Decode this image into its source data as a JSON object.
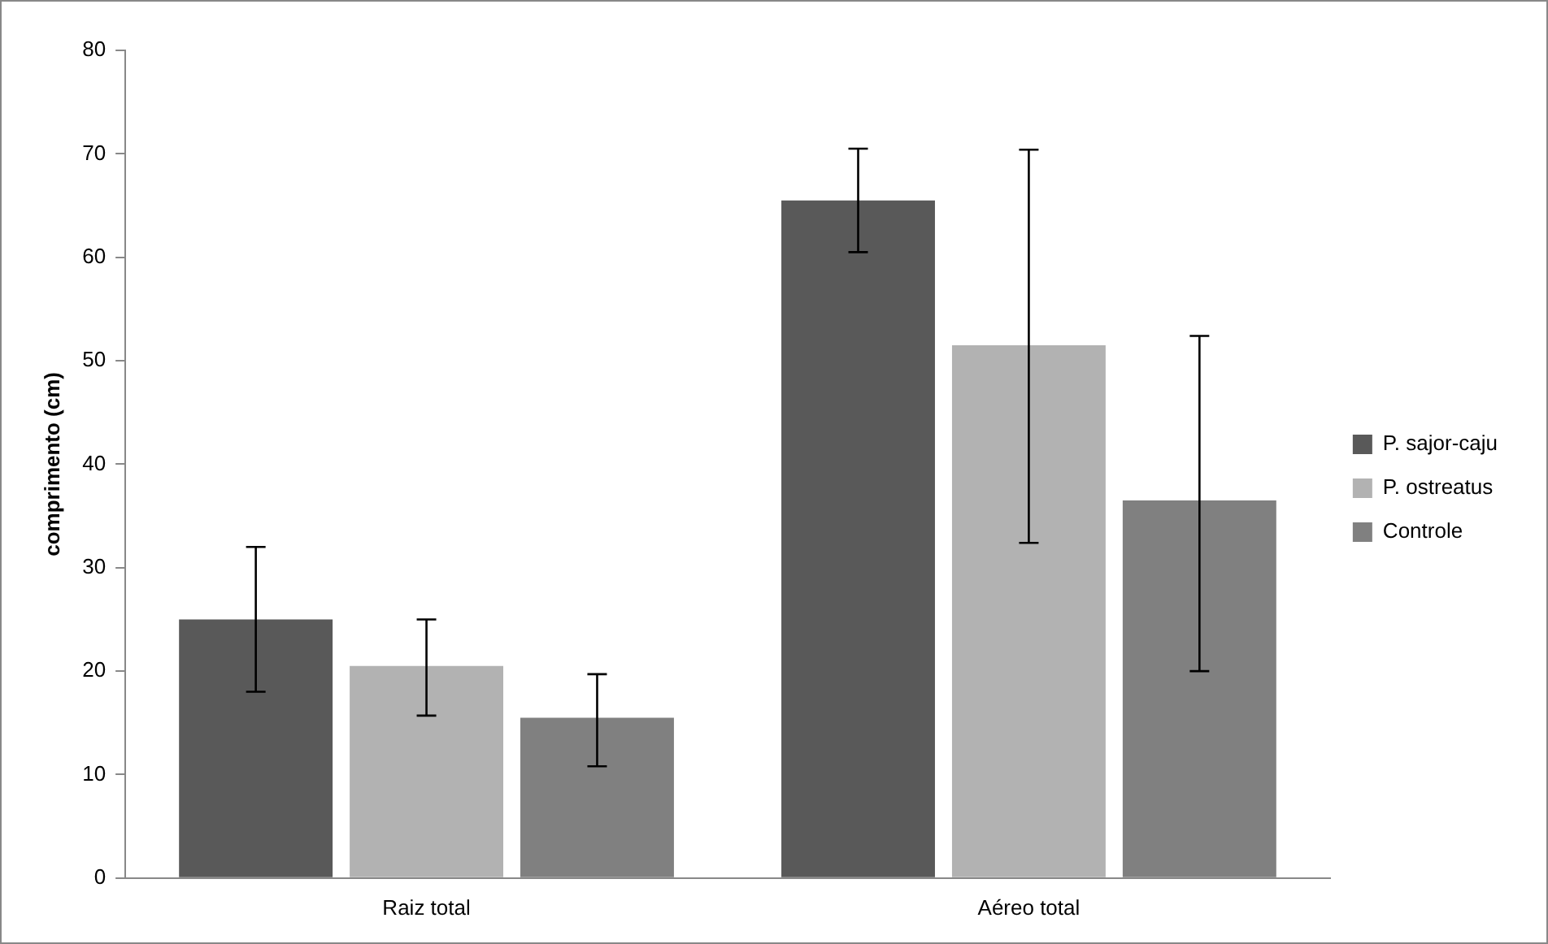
{
  "chart_data": {
    "type": "bar",
    "ylabel": "comprimento (cm)",
    "categories": [
      "Raiz total",
      "Aéreo total"
    ],
    "series": [
      {
        "name": "P. sajor-caju",
        "color": "#595959",
        "values": [
          25,
          65.5
        ],
        "errors": [
          [
            18,
            32
          ],
          [
            60.5,
            70.5
          ]
        ]
      },
      {
        "name": "P. ostreatus",
        "color": "#b2b2b2",
        "values": [
          20.5,
          51.5
        ],
        "errors": [
          [
            15.7,
            25
          ],
          [
            32.4,
            70.4
          ]
        ]
      },
      {
        "name": "Controle",
        "color": "#808080",
        "values": [
          15.5,
          36.5
        ],
        "errors": [
          [
            10.8,
            19.7
          ],
          [
            20,
            52.4
          ]
        ]
      }
    ],
    "ylim": [
      0,
      80
    ],
    "yticks": [
      0,
      10,
      20,
      30,
      40,
      50,
      60,
      70,
      80
    ],
    "grid": false,
    "legend": "right"
  }
}
